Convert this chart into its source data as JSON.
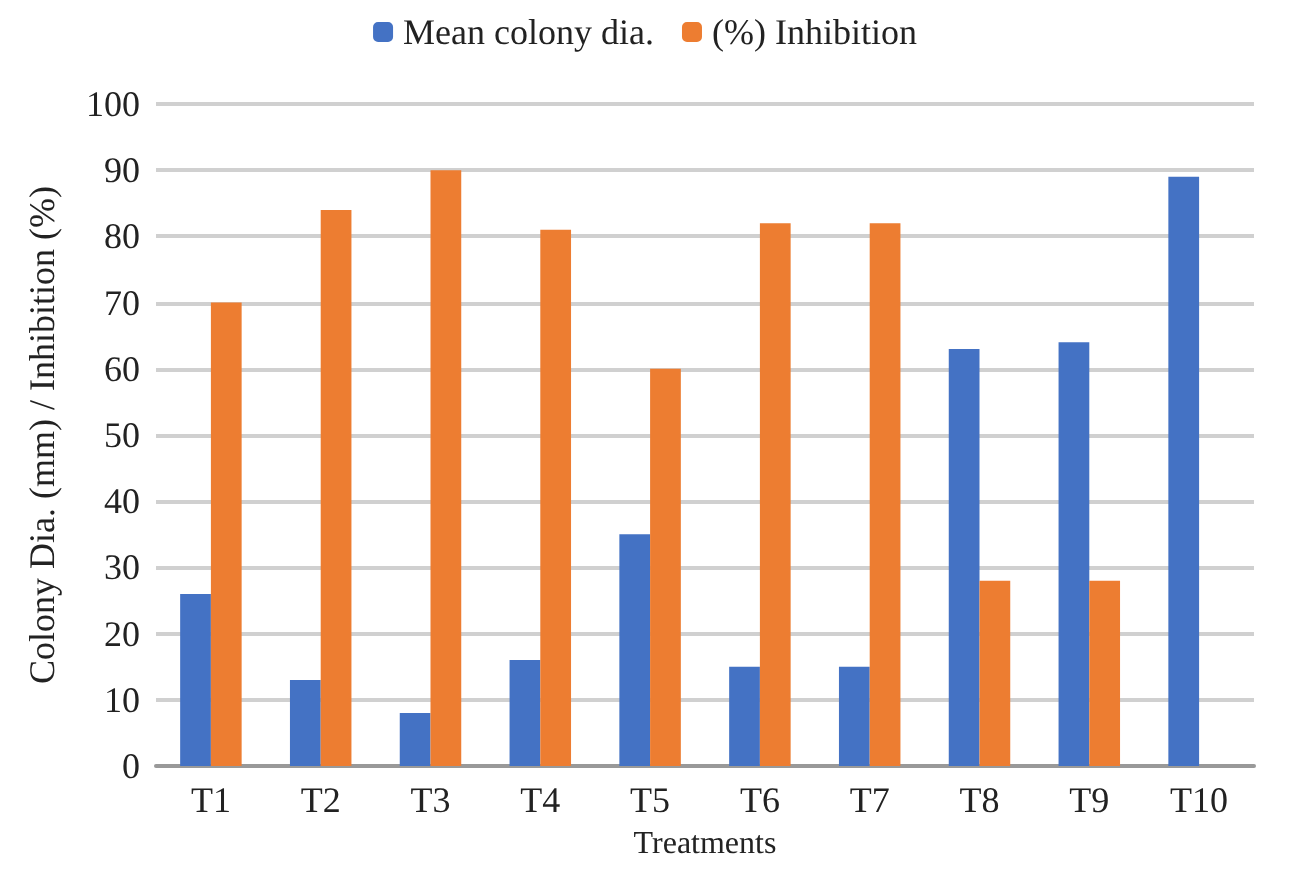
{
  "chart_data": {
    "type": "bar",
    "xlabel": "Treatments",
    "ylabel": "Colony Dia. (mm) / Inhibition (%)",
    "categories": [
      "T1",
      "T2",
      "T3",
      "T4",
      "T5",
      "T6",
      "T7",
      "T8",
      "T9",
      "T10"
    ],
    "series": [
      {
        "name": "Mean colony dia.",
        "color": "#4472c4",
        "values": [
          26,
          13,
          8,
          16,
          35,
          15,
          15,
          63,
          64,
          89
        ]
      },
      {
        "name": "(%) Inhibition",
        "color": "#ed7d31",
        "values": [
          70,
          84,
          90,
          81,
          60,
          82,
          82,
          28,
          28,
          0
        ]
      }
    ],
    "ylim": [
      0,
      100
    ],
    "yticks": [
      0,
      10,
      20,
      30,
      40,
      50,
      60,
      70,
      80,
      90,
      100
    ],
    "grid": "y",
    "legend": "top"
  }
}
